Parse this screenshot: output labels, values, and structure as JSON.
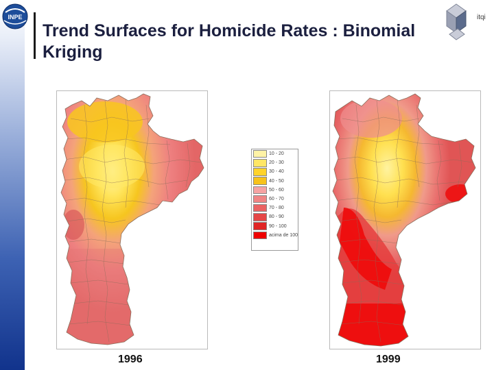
{
  "slide": {
    "title": "Trend Surfaces for Homicide Rates : Binomial Kriging",
    "brand_text": "itqi",
    "logo_text": "INPE"
  },
  "maps": [
    {
      "caption": "1996"
    },
    {
      "caption": "1999"
    }
  ],
  "legend": {
    "items": [
      {
        "label": "10 - 20",
        "color": "#fff3a6"
      },
      {
        "label": "20 - 30",
        "color": "#ffe766"
      },
      {
        "label": "30 - 40",
        "color": "#ffd32a"
      },
      {
        "label": "40 - 50",
        "color": "#f7c21a"
      },
      {
        "label": "50 - 60",
        "color": "#f6a3a3"
      },
      {
        "label": "60 - 70",
        "color": "#f08585"
      },
      {
        "label": "70 - 80",
        "color": "#eb6363"
      },
      {
        "label": "80 - 90",
        "color": "#e54646"
      },
      {
        "label": "90 - 100",
        "color": "#e02525"
      },
      {
        "label": "acima de 100",
        "color": "#ee0000"
      }
    ]
  }
}
